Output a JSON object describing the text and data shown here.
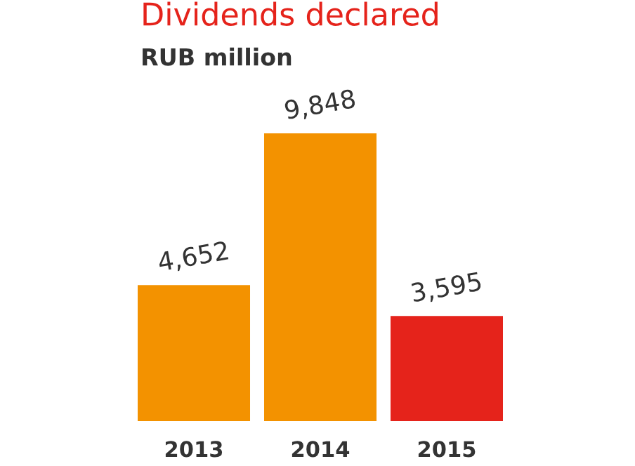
{
  "chart_data": {
    "type": "bar",
    "title": "Dividends declared",
    "subtitle": "RUB million",
    "categories": [
      "2013",
      "2014",
      "2015"
    ],
    "values": [
      4652,
      9848,
      3595
    ],
    "colors": [
      "#f39200",
      "#f39200",
      "#e5231b"
    ],
    "value_labels": [
      "4,652",
      "9,848",
      "3,595"
    ],
    "grid": false,
    "legend": false
  }
}
